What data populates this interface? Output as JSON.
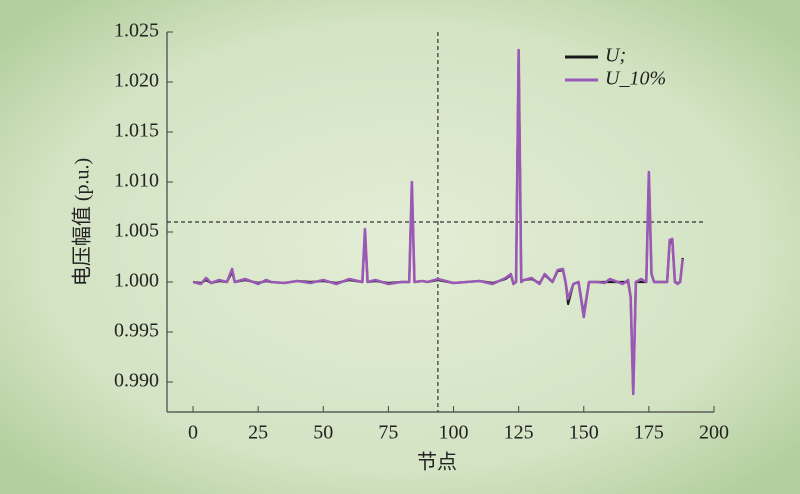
{
  "chart_data": {
    "type": "line",
    "xlabel": "节点",
    "ylabel": "电压幅值 (p.u.)",
    "x": [
      0,
      3,
      5,
      7,
      10,
      13,
      15,
      16,
      20,
      25,
      28,
      30,
      35,
      40,
      45,
      50,
      55,
      60,
      65,
      66,
      67,
      70,
      75,
      80,
      83,
      84,
      85,
      88,
      90,
      94,
      100,
      105,
      110,
      115,
      120,
      122,
      123,
      124,
      125,
      126,
      127,
      130,
      133,
      135,
      138,
      140,
      142,
      143,
      144,
      146,
      148,
      150,
      152,
      155,
      158,
      160,
      163,
      165,
      167,
      168,
      169,
      170,
      172,
      174,
      175,
      176,
      177,
      180,
      182,
      183,
      184,
      185,
      186,
      187,
      188
    ],
    "series": [
      {
        "name": "U;",
        "color": "#1a1a1a",
        "values": [
          1.0,
          0.9999,
          1.0002,
          0.9999,
          1.0001,
          1.0,
          1.001,
          1.0,
          1.0002,
          0.9999,
          1.0001,
          1.0,
          0.9999,
          1.0001,
          1.0,
          1.0001,
          0.9999,
          1.0002,
          1.0,
          1.005,
          1.0,
          1.0001,
          0.9999,
          1.0,
          1.0,
          1.0098,
          1.0,
          1.0001,
          1.0,
          1.0002,
          0.9999,
          1.0,
          1.0001,
          0.9999,
          1.0003,
          1.0007,
          0.9999,
          1.0,
          1.023,
          1.0,
          1.0002,
          1.0003,
          0.9999,
          1.0007,
          1.0,
          1.0011,
          1.0012,
          1.0,
          0.9978,
          0.9998,
          1.0,
          0.9968,
          1.0,
          1.0,
          1.0,
          1.0,
          1.0,
          1.0,
          1.0,
          0.9985,
          0.9888,
          1.0,
          1.0,
          1.0,
          1.0108,
          1.0008,
          1.0,
          1.0,
          1.0,
          1.004,
          1.004,
          1.0,
          0.9999,
          1.0,
          1.0024
        ]
      },
      {
        "name": "U_10%",
        "color": "#9b59b6",
        "values": [
          1.0,
          0.9998,
          1.0004,
          0.9999,
          1.0002,
          1.0,
          1.0013,
          1.0,
          1.0003,
          0.9998,
          1.0002,
          1.0,
          0.9999,
          1.0001,
          0.9999,
          1.0002,
          0.9998,
          1.0003,
          1.0,
          1.0053,
          1.0,
          1.0002,
          0.9998,
          1.0,
          1.0,
          1.01,
          1.0,
          1.0001,
          1.0,
          1.0003,
          0.9999,
          1.0,
          1.0001,
          0.9998,
          1.0004,
          1.0008,
          0.9998,
          1.0,
          1.0232,
          1.0,
          1.0002,
          1.0004,
          0.9998,
          1.0008,
          1.0,
          1.0012,
          1.0013,
          1.0,
          0.9983,
          0.9998,
          1.0,
          0.9965,
          1.0,
          1.0,
          0.9999,
          1.0003,
          1.0,
          0.9998,
          1.0002,
          0.9985,
          0.9888,
          1.0,
          1.0003,
          1.0,
          1.011,
          1.0008,
          1.0,
          1.0,
          1.0,
          1.0042,
          1.0043,
          1.0,
          0.9998,
          1.0,
          1.0023
        ]
      }
    ],
    "xlim": [
      -10,
      200
    ],
    "xticks": [
      0,
      25,
      50,
      75,
      100,
      125,
      150,
      175,
      200
    ],
    "ylim": [
      0.987,
      1.025
    ],
    "yticks": [
      {
        "value": 0.99,
        "label": "0.990"
      },
      0.995,
      {
        "value": 1.0,
        "label": "1.000"
      },
      1.005,
      {
        "value": 1.01,
        "label": "1.010"
      },
      1.015,
      {
        "value": 1.02,
        "label": "1.020"
      },
      1.025
    ],
    "hline": 1.006,
    "vline": 94,
    "legend": "upper right"
  }
}
